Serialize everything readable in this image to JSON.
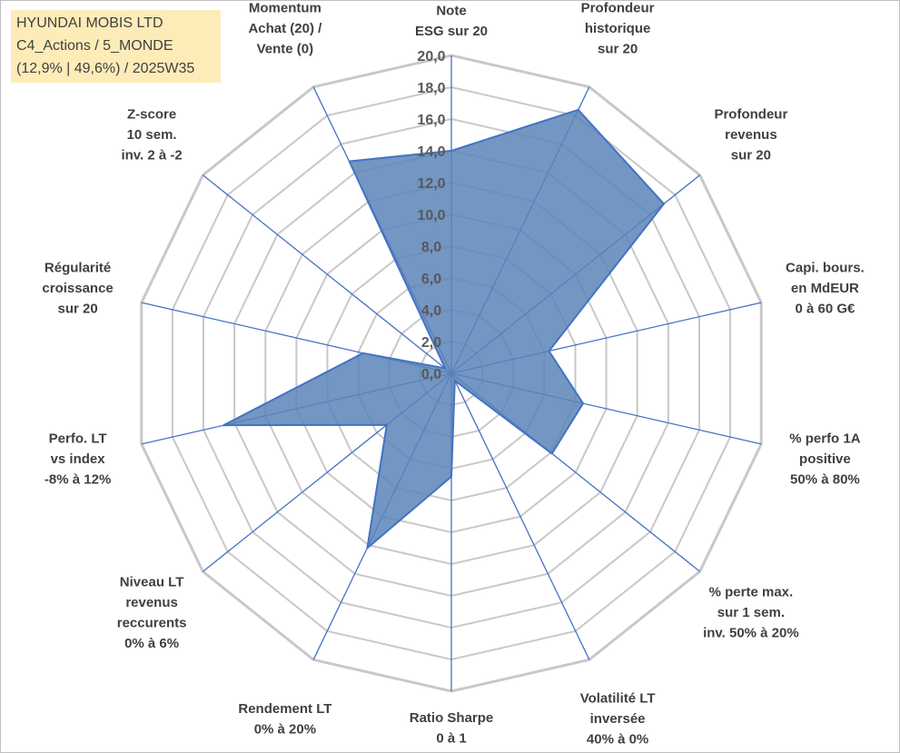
{
  "info": {
    "line1": "HYUNDAI MOBIS LTD",
    "line2": "C4_Actions / 5_MONDE",
    "line3": "(12,9% | 49,6%) / 2025W35"
  },
  "colors": {
    "grid": "#c8c8c8",
    "spoke": "#4472c4",
    "fill": "#5b84b8",
    "stroke": "#4472c4",
    "infobox": "#fdecb8"
  },
  "chart_data": {
    "type": "radar",
    "rlim": [
      0,
      20
    ],
    "rticks": [
      "0,0",
      "2,0",
      "4,0",
      "6,0",
      "8,0",
      "10,0",
      "12,0",
      "14,0",
      "16,0",
      "18,0",
      "20,0"
    ],
    "grid": true,
    "axes": [
      [
        "Note",
        "ESG sur 20"
      ],
      [
        "Profondeur",
        "historique",
        "sur 20"
      ],
      [
        "Profondeur",
        "revenus",
        "sur 20"
      ],
      [
        "Capi. bours.",
        "en MdEUR",
        "0 à 60 G€"
      ],
      [
        "% perfo 1A",
        "positive",
        "50% à 80%"
      ],
      [
        "% perte max.",
        "sur 1 sem.",
        "inv. 50% à 20%"
      ],
      [
        "Volatilité LT",
        "inversée",
        "40% à 0%"
      ],
      [
        "Ratio Sharpe",
        "0 à 1"
      ],
      [
        "Rendement LT",
        "0% à 20%"
      ],
      [
        "Niveau LT",
        "revenus",
        "reccurents",
        "0% à 6%"
      ],
      [
        "Perfo. LT",
        "vs index",
        "-8% à 12%"
      ],
      [
        "Régularité",
        "croissance",
        "sur 20"
      ],
      [
        "Z-score",
        "10 sem.",
        "inv. 2 à -2"
      ],
      [
        "Momentum",
        "Achat (20) /",
        "Vente (0)"
      ]
    ],
    "values": [
      14,
      18.4,
      17.1,
      6.3,
      8.5,
      8.1,
      0.5,
      6.5,
      12.2,
      5.2,
      14.7,
      5.7,
      0.5,
      14.8
    ]
  }
}
